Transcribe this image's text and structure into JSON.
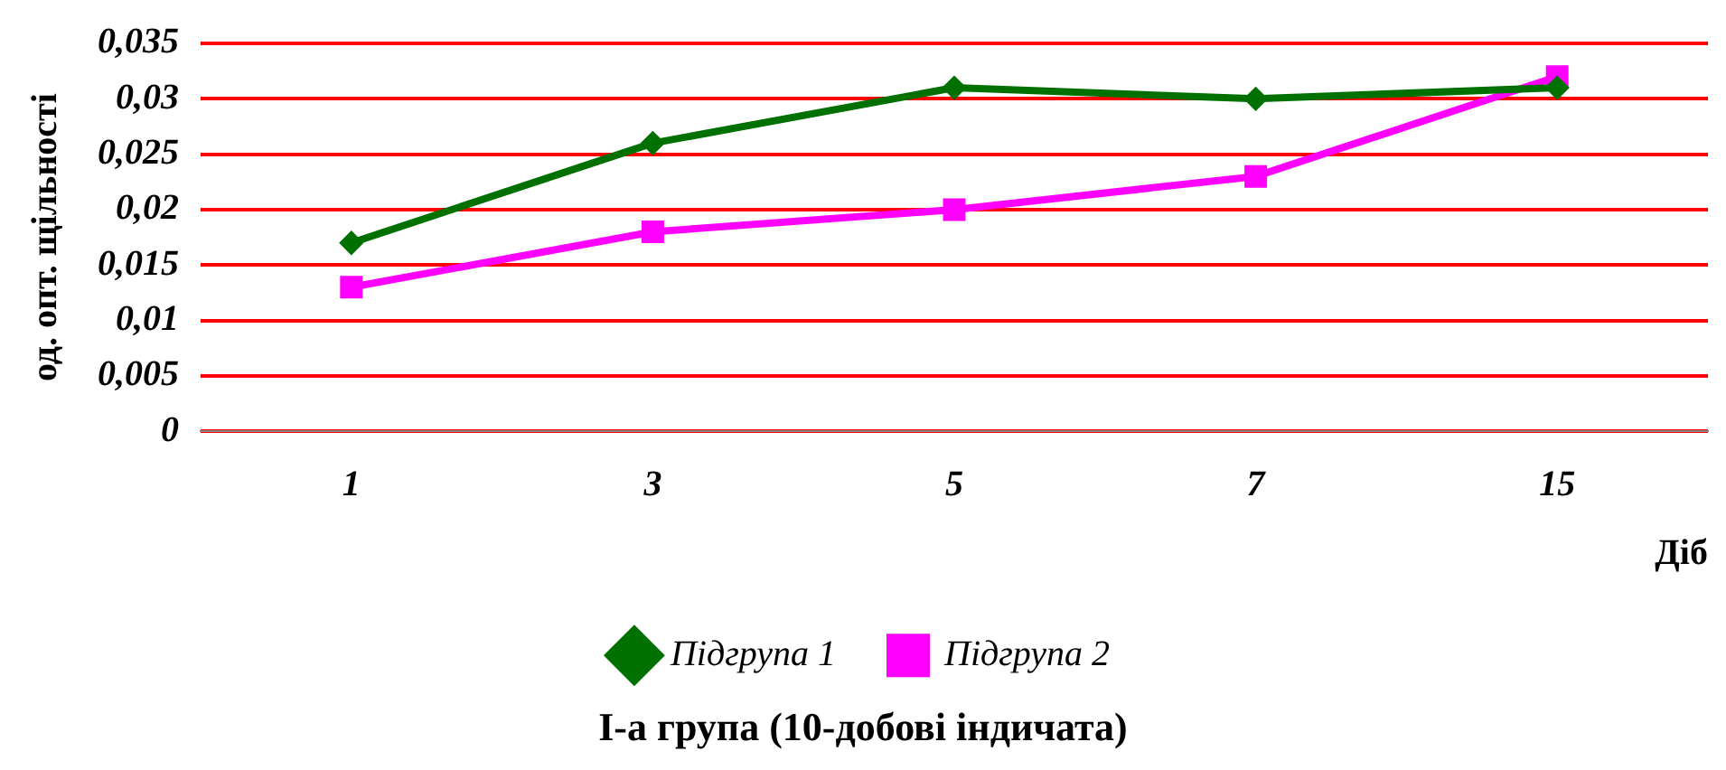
{
  "chart_data": {
    "type": "line",
    "title": "І-а група (10-добові індичата)",
    "xlabel": "Діб",
    "ylabel": "од. опт. щільності",
    "categories": [
      "1",
      "3",
      "5",
      "7",
      "15"
    ],
    "series": [
      {
        "name": "Підгрупа 1",
        "color": "#007000",
        "marker": "diamond",
        "values": [
          0.017,
          0.026,
          0.031,
          0.03,
          0.031
        ]
      },
      {
        "name": "Підгрупа 2",
        "color": "#ff00ff",
        "marker": "square",
        "values": [
          0.013,
          0.018,
          0.02,
          0.023,
          0.032
        ]
      }
    ],
    "ylim": [
      0,
      0.035
    ],
    "yticks": [
      {
        "value": 0,
        "label": "0"
      },
      {
        "value": 0.005,
        "label": "0,005"
      },
      {
        "value": 0.01,
        "label": "0,01"
      },
      {
        "value": 0.015,
        "label": "0,015"
      },
      {
        "value": 0.02,
        "label": "0,02"
      },
      {
        "value": 0.025,
        "label": "0,025"
      },
      {
        "value": 0.03,
        "label": "0,03"
      },
      {
        "value": 0.035,
        "label": "0,035"
      }
    ],
    "grid": "y",
    "legend": "bottom",
    "line_style": "solid"
  }
}
